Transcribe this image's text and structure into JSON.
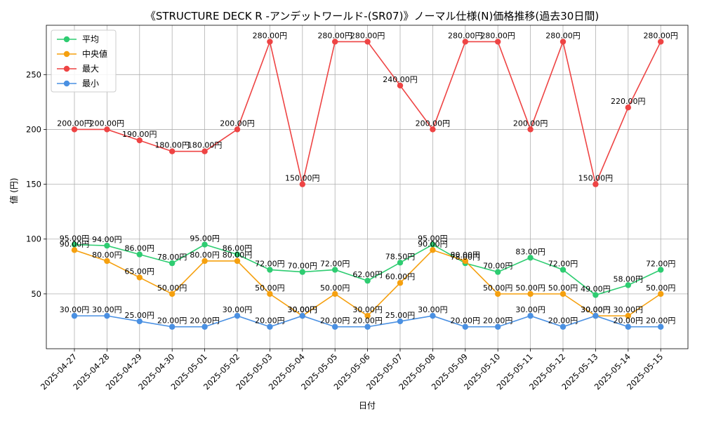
{
  "chart_data": {
    "type": "line",
    "title": "《STRUCTURE DECK R -アンデットワールド-(SR07)》ノーマル仕様(N)価格推移(過去30日間)",
    "xlabel": "日付",
    "ylabel": "値 (円)",
    "ylim": [
      0,
      295
    ],
    "yticks": [
      50,
      100,
      150,
      200,
      250
    ],
    "grid": true,
    "legend_position": "top-left",
    "value_suffix": "円",
    "categories": [
      "2025-04-27",
      "2025-04-28",
      "2025-04-29",
      "2025-04-30",
      "2025-05-01",
      "2025-05-02",
      "2025-05-03",
      "2025-05-04",
      "2025-05-05",
      "2025-05-06",
      "2025-05-07",
      "2025-05-08",
      "2025-05-09",
      "2025-05-10",
      "2025-05-11",
      "2025-05-12",
      "2025-05-13",
      "2025-05-14",
      "2025-05-15"
    ],
    "series": [
      {
        "name": "平均",
        "color": "#2ecc71",
        "values": [
          95,
          94,
          86,
          78,
          95,
          86,
          72,
          70,
          72,
          62,
          78.5,
          95,
          78,
          70,
          83,
          72,
          49,
          58,
          72
        ]
      },
      {
        "name": "中央値",
        "color": "#f5a00f",
        "values": [
          90,
          80,
          65,
          50,
          80,
          80,
          50,
          30,
          50,
          30,
          60,
          90,
          80,
          50,
          50,
          50,
          30,
          30,
          50
        ]
      },
      {
        "name": "最大",
        "color": "#ee4444",
        "values": [
          200,
          200,
          190,
          180,
          180,
          200,
          280,
          150,
          280,
          280,
          240,
          200,
          280,
          280,
          200,
          280,
          150,
          220,
          280
        ]
      },
      {
        "name": "最小",
        "color": "#4a90e2",
        "values": [
          30,
          30,
          25,
          20,
          20,
          30,
          20,
          30,
          20,
          20,
          25,
          30,
          20,
          20,
          30,
          20,
          30,
          20,
          20
        ]
      }
    ]
  }
}
